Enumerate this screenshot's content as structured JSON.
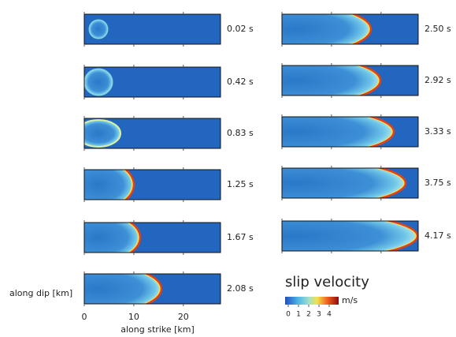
{
  "panels": [
    {
      "time": "0.02 s"
    },
    {
      "time": "0.42 s"
    },
    {
      "time": "0.83 s"
    },
    {
      "time": "1.25 s"
    },
    {
      "time": "1.67 s"
    },
    {
      "time": "2.08 s"
    },
    {
      "time": "2.50 s"
    },
    {
      "time": "2.92 s"
    },
    {
      "time": "3.33 s"
    },
    {
      "time": "3.75 s"
    },
    {
      "time": "4.17 s"
    }
  ],
  "x_axis": {
    "label": "along strike [km]",
    "ticks": [
      0,
      10,
      20
    ],
    "lim": [
      0,
      27.5
    ]
  },
  "y_axis": {
    "label": "along dip [km]"
  },
  "colorbar": {
    "title": "slip velocity",
    "unit": "m/s",
    "ticks": [
      0,
      1,
      2,
      3,
      4
    ],
    "lim": [
      0,
      4
    ]
  }
}
